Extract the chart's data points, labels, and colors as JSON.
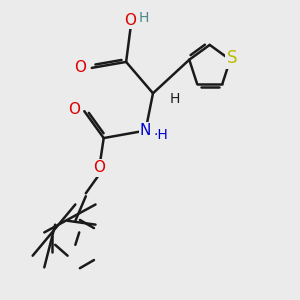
{
  "background_color": "#ebebeb",
  "bond_color": "#1a1a1a",
  "bond_width": 1.8,
  "atom_colors": {
    "O": "#dd0000",
    "N": "#0000cc",
    "S": "#bbbb00",
    "H": "#4a8888",
    "C": "#1a1a1a"
  },
  "font_size": 11,
  "figsize": [
    3.0,
    3.0
  ],
  "dpi": 100
}
